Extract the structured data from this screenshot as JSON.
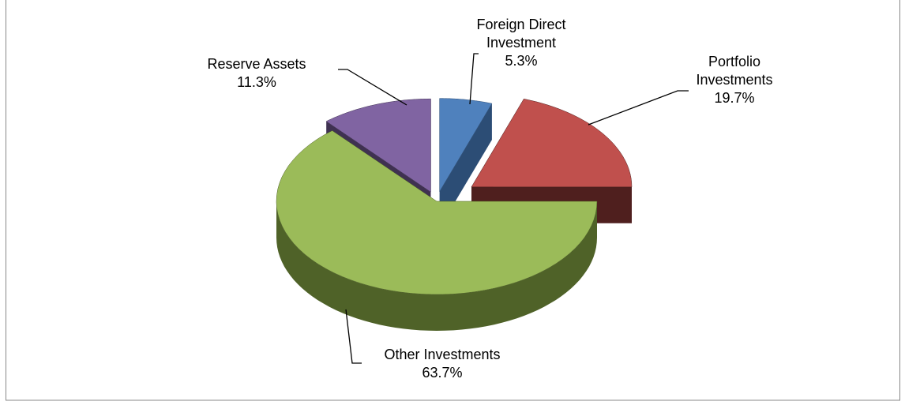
{
  "chart_data": {
    "type": "pie",
    "categories": [
      "Foreign Direct Investment",
      "Portfolio Investments",
      "Other Investments",
      "Reserve Assets"
    ],
    "values": [
      5.3,
      19.7,
      63.7,
      11.3
    ],
    "value_labels": [
      "5.3%",
      "19.7%",
      "63.7%",
      "11.3%"
    ],
    "colors": [
      "#4f81bd",
      "#c0504d",
      "#9bbb59",
      "#8064a2"
    ],
    "side_colors": [
      "#2c4d75",
      "#4f1f1e",
      "#4f6228",
      "#3f3151"
    ],
    "explode": [
      0.12,
      0.3,
      0,
      0.12
    ]
  }
}
